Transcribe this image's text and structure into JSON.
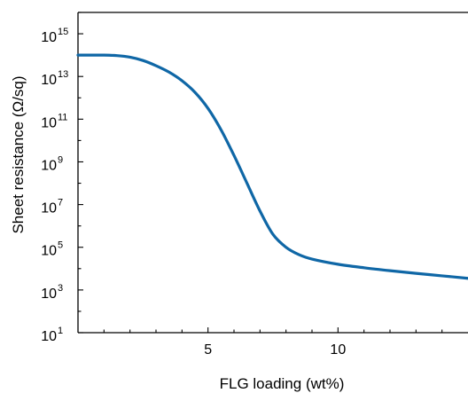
{
  "chart_data": {
    "type": "line",
    "xlabel": "FLG loading (wt%)",
    "ylabel": "Sheet resistance (Ω/sq)",
    "xlim": [
      0,
      15
    ],
    "ylim_log10": [
      1,
      16
    ],
    "y_scale": "log",
    "grid": false,
    "legend": "none",
    "x_ticks": [
      5,
      10
    ],
    "x_tick_labels": [
      "5",
      "10"
    ],
    "y_ticks": [
      {
        "mantissa": "10",
        "exponent": "15",
        "log10": 15
      },
      {
        "mantissa": "10",
        "exponent": "13",
        "log10": 13
      },
      {
        "mantissa": "10",
        "exponent": "11",
        "log10": 11
      },
      {
        "mantissa": "10",
        "exponent": "9",
        "log10": 9
      },
      {
        "mantissa": "10",
        "exponent": "7",
        "log10": 7
      },
      {
        "mantissa": "10",
        "exponent": "5",
        "log10": 5
      },
      {
        "mantissa": "10",
        "exponent": "3",
        "log10": 3
      },
      {
        "mantissa": "10",
        "exponent": "1",
        "log10": 1
      }
    ],
    "series": [
      {
        "color": "#0F67A6",
        "x": [
          0,
          1,
          1.5,
          2,
          2.5,
          3,
          3.5,
          4,
          4.5,
          5,
          5.5,
          6,
          6.5,
          7,
          7.5,
          8,
          8.5,
          9,
          10,
          11,
          12,
          13,
          14,
          15
        ],
        "y": [
          "1e14",
          "1e14",
          "9.5e13",
          "8e13",
          "5.6e13",
          "3.2e13",
          "1.6e13",
          "6.3e12",
          "1.8e12",
          "3.2e11",
          "3.2e10",
          "2e9",
          "1e8",
          "5e6",
          "4e5",
          "1e5",
          "4.5e4",
          "2.8e4",
          "1.6e4",
          "1.1e4",
          "8e3",
          "6e3",
          "4.6e3",
          "3.5e3"
        ]
      }
    ]
  }
}
